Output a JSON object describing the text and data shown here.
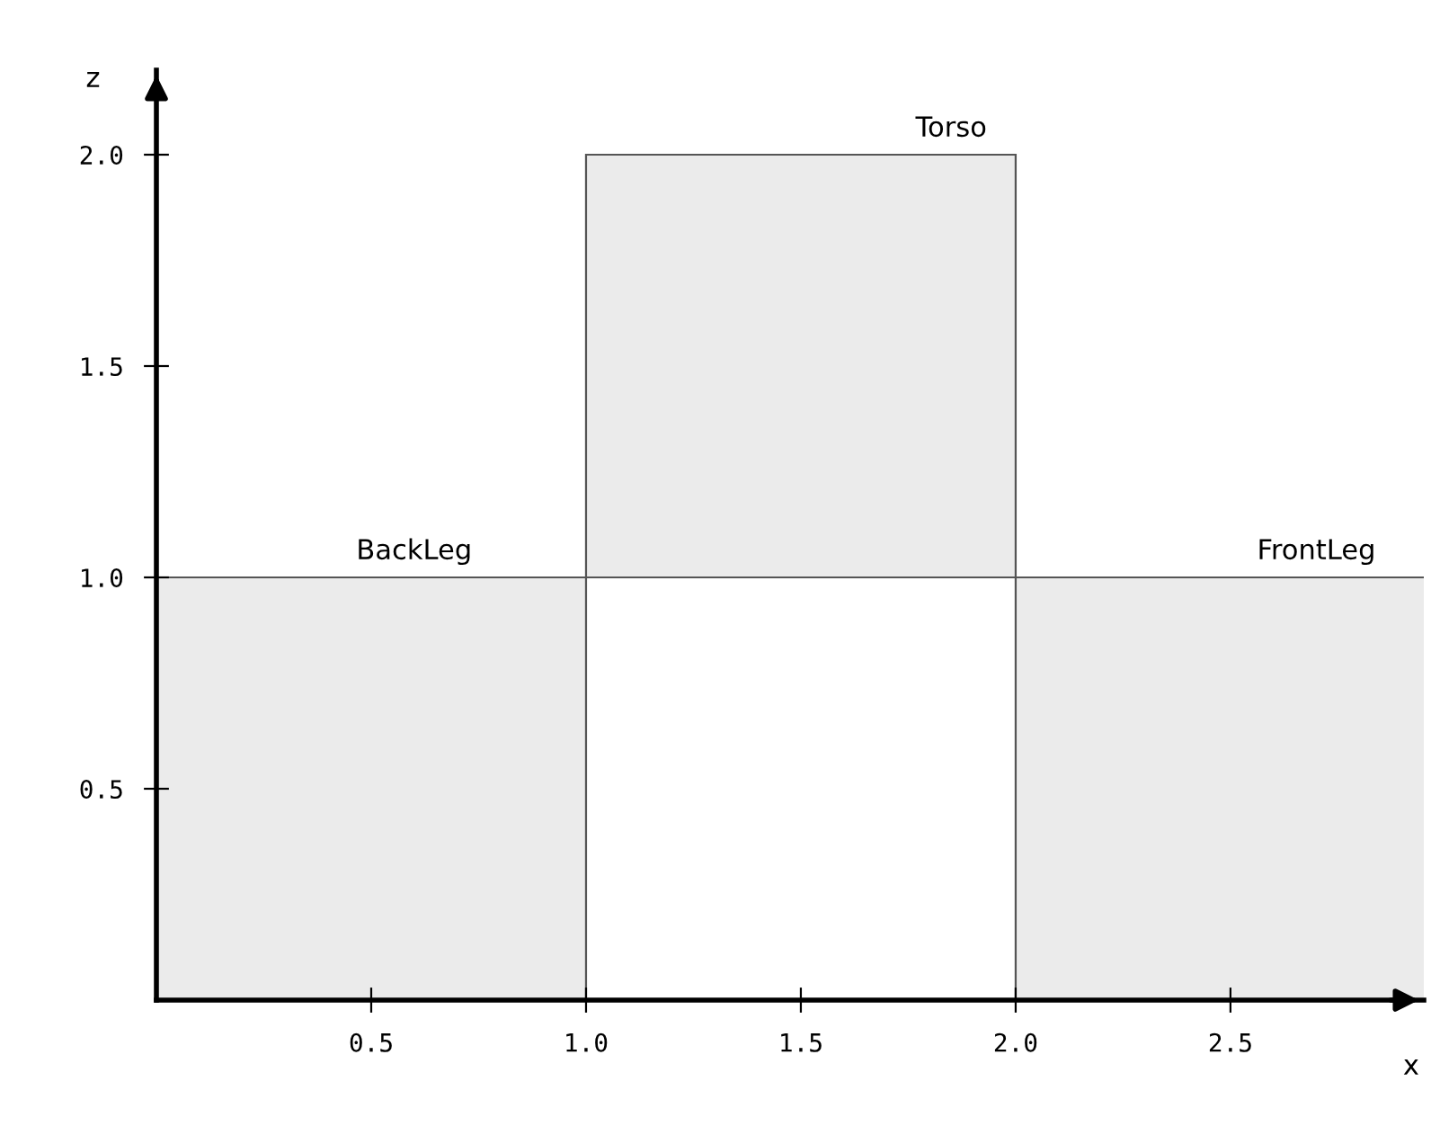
{
  "chart_data": {
    "type": "bar",
    "x": [
      0.5,
      1.5,
      2.5
    ],
    "values": [
      1,
      1,
      1
    ],
    "base": [
      0,
      1,
      0
    ],
    "color": "#ebebeb",
    "xlabel": "x",
    "ylabel": "z",
    "annotations": [
      {
        "text": "BackLeg",
        "x": 0.6,
        "y": 1.0
      },
      {
        "text": "Torso",
        "x": 1.85,
        "y": 2.0
      },
      {
        "text": "FrontLeg",
        "x": 2.7,
        "y": 1.0
      }
    ],
    "xlim": [
      0,
      2.95
    ],
    "ylim": [
      0,
      2.2
    ],
    "xticks": [
      0.5,
      {
        "value": 1,
        "label": "1.0"
      },
      1.5,
      {
        "value": 2,
        "label": "2.0"
      },
      2.5
    ],
    "yticks": [
      0.5,
      {
        "value": 1,
        "label": "1.0"
      },
      1.5,
      {
        "value": 2,
        "label": "2.0"
      }
    ],
    "grid": false,
    "legend": false
  }
}
